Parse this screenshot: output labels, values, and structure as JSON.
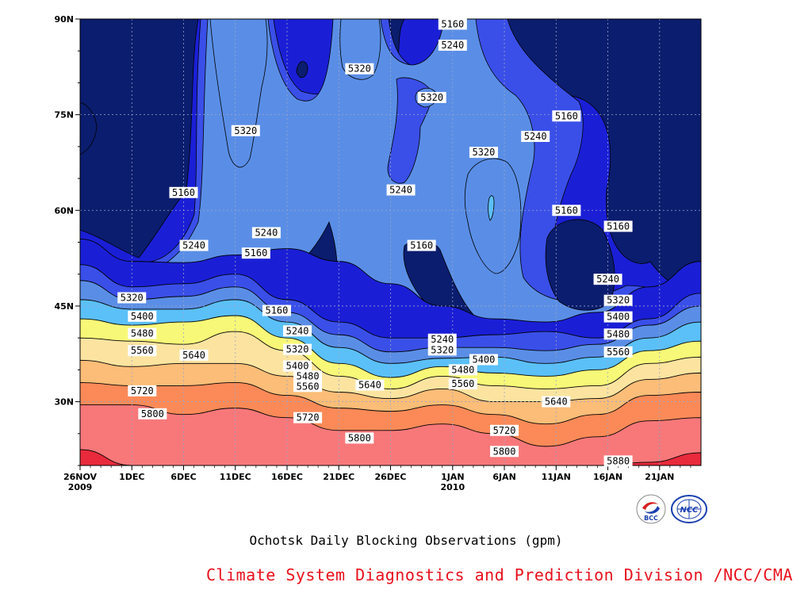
{
  "chart_data": {
    "type": "heatmap",
    "subtype": "filled-contour",
    "title": "Ochotsk Daily Blocking Observations (gpm)",
    "xlabel": "",
    "ylabel": "",
    "x_axis": {
      "start": "2009-11-26",
      "end": "2010-01-25",
      "tick_labels": [
        {
          "date": "2009-11-26",
          "label": "26NOV",
          "sub": "2009"
        },
        {
          "date": "2009-12-01",
          "label": "1DEC",
          "sub": ""
        },
        {
          "date": "2009-12-06",
          "label": "6DEC",
          "sub": ""
        },
        {
          "date": "2009-12-11",
          "label": "11DEC",
          "sub": ""
        },
        {
          "date": "2009-12-16",
          "label": "16DEC",
          "sub": ""
        },
        {
          "date": "2009-12-21",
          "label": "21DEC",
          "sub": ""
        },
        {
          "date": "2009-12-26",
          "label": "26DEC",
          "sub": ""
        },
        {
          "date": "2010-01-01",
          "label": "1JAN",
          "sub": "2010"
        },
        {
          "date": "2010-01-06",
          "label": "6JAN",
          "sub": ""
        },
        {
          "date": "2010-01-11",
          "label": "11JAN",
          "sub": ""
        },
        {
          "date": "2010-01-16",
          "label": "16JAN",
          "sub": ""
        },
        {
          "date": "2010-01-21",
          "label": "21JAN",
          "sub": ""
        }
      ]
    },
    "y_axis": {
      "range": [
        20,
        90
      ],
      "ticks": [
        {
          "value": 30,
          "label": "30N"
        },
        {
          "value": 45,
          "label": "45N"
        },
        {
          "value": 60,
          "label": "60N"
        },
        {
          "value": 75,
          "label": "75N"
        },
        {
          "value": 90,
          "label": "90N"
        }
      ]
    },
    "grid": true,
    "levels": [
      5160,
      5240,
      5320,
      5400,
      5480,
      5560,
      5640,
      5720,
      5800,
      5880
    ],
    "fill_colors": {
      "below_5160": "#0b1d6e",
      "5160": "#1a1fd6",
      "5240": "#3a4fe8",
      "5320": "#5a8ee6",
      "5400": "#5bc0f8",
      "5480": "#f8f878",
      "5560": "#fce4a0",
      "5640": "#fbbd78",
      "5720": "#fb8a58",
      "5800": "#f8787a",
      "5880": "#e82a3c"
    },
    "southern_bands": [
      {
        "level": 5160,
        "lat": [
          55.5,
          52.0,
          51.8,
          53.0,
          54.0,
          52.0,
          48.5,
          45.0,
          43.0,
          42.5,
          44.0,
          48.0,
          52.0
        ]
      },
      {
        "level": 5240,
        "lat": [
          51.5,
          48.0,
          48.5,
          50.0,
          46.0,
          42.5,
          40.0,
          40.0,
          40.5,
          41.0,
          40.0,
          43.0,
          47.0
        ]
      },
      {
        "level": 5320,
        "lat": [
          49.0,
          46.0,
          46.5,
          48.0,
          44.0,
          40.5,
          37.8,
          38.5,
          38.5,
          38.0,
          39.0,
          42.0,
          45.0
        ]
      },
      {
        "level": 5400,
        "lat": [
          46.0,
          44.5,
          44.5,
          46.0,
          42.5,
          38.5,
          36.0,
          36.8,
          37.0,
          36.0,
          37.0,
          40.0,
          42.5
        ]
      },
      {
        "level": 5480,
        "lat": [
          43.0,
          42.0,
          42.5,
          43.5,
          40.0,
          36.0,
          33.8,
          35.5,
          34.5,
          34.0,
          35.0,
          38.0,
          39.5
        ]
      },
      {
        "level": 5560,
        "lat": [
          40.0,
          39.5,
          39.0,
          41.0,
          38.0,
          34.0,
          32.0,
          34.0,
          32.5,
          32.0,
          32.5,
          36.0,
          37.0
        ]
      },
      {
        "level": 5640,
        "lat": [
          36.5,
          35.5,
          36.0,
          36.0,
          34.0,
          31.5,
          30.5,
          32.0,
          30.0,
          30.0,
          30.5,
          33.5,
          34.5
        ]
      },
      {
        "level": 5720,
        "lat": [
          33.0,
          32.5,
          32.5,
          33.0,
          31.0,
          29.0,
          28.5,
          29.5,
          28.0,
          26.5,
          28.0,
          31.0,
          31.5
        ]
      },
      {
        "level": 5800,
        "lat": [
          29.5,
          29.5,
          28.0,
          29.0,
          27.5,
          25.5,
          25.5,
          26.5,
          25.0,
          23.0,
          24.5,
          27.0,
          27.5
        ]
      },
      {
        "level": 5880,
        "lat": [
          22.5,
          20.0,
          20.0,
          20.0,
          20.0,
          20.0,
          20.0,
          20.0,
          20.0,
          20.0,
          20.0,
          20.5,
          22.0
        ]
      }
    ],
    "band_dates": [
      "2009-11-26",
      "2009-12-01",
      "2009-12-06",
      "2009-12-11",
      "2009-12-16",
      "2009-12-21",
      "2009-12-26",
      "2009-12-31",
      "2010-01-05",
      "2010-01-10",
      "2010-01-15",
      "2010-01-20",
      "2010-01-25"
    ],
    "contour_labels": [
      {
        "text": "5160",
        "date": "2009-12-06",
        "lat": 62.8
      },
      {
        "text": "5240",
        "date": "2009-12-07",
        "lat": 54.5
      },
      {
        "text": "5320",
        "date": "2009-12-01",
        "lat": 46.3
      },
      {
        "text": "5400",
        "date": "2009-12-02",
        "lat": 43.4
      },
      {
        "text": "5480",
        "date": "2009-12-02",
        "lat": 40.7
      },
      {
        "text": "5560",
        "date": "2009-12-02",
        "lat": 38.0
      },
      {
        "text": "5640",
        "date": "2009-12-07",
        "lat": 37.3
      },
      {
        "text": "5720",
        "date": "2009-12-02",
        "lat": 31.7
      },
      {
        "text": "5800",
        "date": "2009-12-03",
        "lat": 28.1
      },
      {
        "text": "5320",
        "date": "2009-12-12",
        "lat": 72.5
      },
      {
        "text": "5240",
        "date": "2009-12-14",
        "lat": 56.5
      },
      {
        "text": "5160",
        "date": "2009-12-13",
        "lat": 53.3
      },
      {
        "text": "5160",
        "date": "2009-12-15",
        "lat": 44.3
      },
      {
        "text": "5240",
        "date": "2009-12-17",
        "lat": 41.1
      },
      {
        "text": "5320",
        "date": "2009-12-17",
        "lat": 38.2
      },
      {
        "text": "5400",
        "date": "2009-12-17",
        "lat": 35.6
      },
      {
        "text": "5480",
        "date": "2009-12-18",
        "lat": 34.0
      },
      {
        "text": "5560",
        "date": "2009-12-18",
        "lat": 32.4
      },
      {
        "text": "5640",
        "date": "2009-12-24",
        "lat": 32.6
      },
      {
        "text": "5720",
        "date": "2009-12-18",
        "lat": 27.5
      },
      {
        "text": "5800",
        "date": "2009-12-23",
        "lat": 24.3
      },
      {
        "text": "5320",
        "date": "2009-12-23",
        "lat": 82.2
      },
      {
        "text": "5240",
        "date": "2009-12-27",
        "lat": 63.2
      },
      {
        "text": "5160",
        "date": "2009-12-29",
        "lat": 54.5
      },
      {
        "text": "5160",
        "date": "2010-01-01",
        "lat": 89.2
      },
      {
        "text": "5240",
        "date": "2010-01-01",
        "lat": 85.9
      },
      {
        "text": "5320",
        "date": "2009-12-30",
        "lat": 77.7
      },
      {
        "text": "5240",
        "date": "2009-12-31",
        "lat": 39.8
      },
      {
        "text": "5320",
        "date": "2009-12-31",
        "lat": 38.1
      },
      {
        "text": "5400",
        "date": "2010-01-04",
        "lat": 36.6
      },
      {
        "text": "5480",
        "date": "2010-01-02",
        "lat": 35.0
      },
      {
        "text": "5560",
        "date": "2010-01-02",
        "lat": 32.8
      },
      {
        "text": "5320",
        "date": "2010-01-04",
        "lat": 69.1
      },
      {
        "text": "5720",
        "date": "2010-01-06",
        "lat": 25.5
      },
      {
        "text": "5800",
        "date": "2010-01-06",
        "lat": 22.2
      },
      {
        "text": "5160",
        "date": "2010-01-12",
        "lat": 74.8
      },
      {
        "text": "5240",
        "date": "2010-01-09",
        "lat": 71.6
      },
      {
        "text": "5160",
        "date": "2010-01-12",
        "lat": 60.0
      },
      {
        "text": "5640",
        "date": "2010-01-11",
        "lat": 30.0
      },
      {
        "text": "5160",
        "date": "2010-01-17",
        "lat": 57.5
      },
      {
        "text": "5240",
        "date": "2010-01-16",
        "lat": 49.2
      },
      {
        "text": "5320",
        "date": "2010-01-17",
        "lat": 45.9
      },
      {
        "text": "5400",
        "date": "2010-01-17",
        "lat": 43.3
      },
      {
        "text": "5480",
        "date": "2010-01-17",
        "lat": 40.6
      },
      {
        "text": "5560",
        "date": "2010-01-17",
        "lat": 37.8
      },
      {
        "text": "5880",
        "date": "2010-01-17",
        "lat": 20.7
      }
    ]
  },
  "credit": {
    "text": "Climate System Diagnostics and Prediction Division /NCC/CMA",
    "color": "#e8101c"
  },
  "logos": {
    "bcc": {
      "text": "BCC",
      "icon": "bcc-logo-icon"
    },
    "ncc": {
      "text": "NCC",
      "icon": "ncc-logo-icon"
    }
  }
}
